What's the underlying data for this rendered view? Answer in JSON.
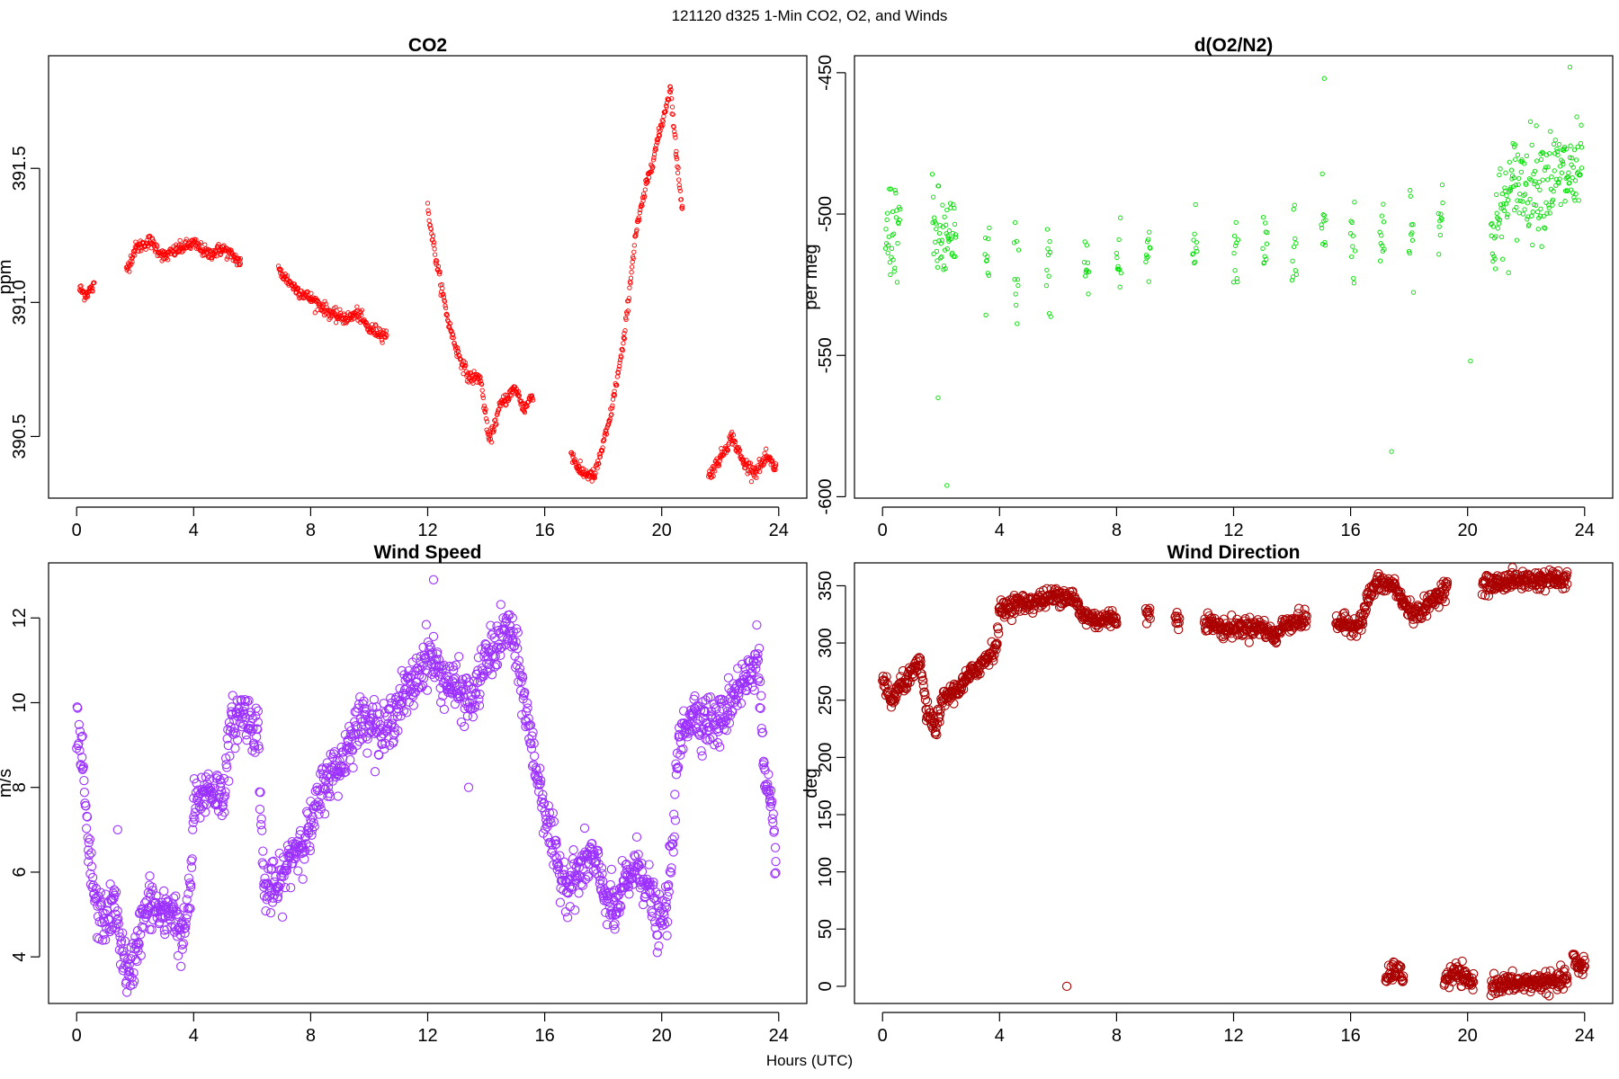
{
  "figure": {
    "title": "121120   d325   1-Min CO2, O2, and Winds",
    "xlabel": "Hours (UTC)"
  },
  "chart_data": [
    {
      "type": "scatter",
      "title": "CO2",
      "xlabel": "",
      "ylabel": "ppm",
      "xlim": [
        -0.96,
        24.96
      ],
      "ylim": [
        390.27,
        391.92
      ],
      "xticks": [
        0,
        4,
        8,
        12,
        16,
        20,
        24
      ],
      "xtick_labels": [
        "0",
        "4",
        "8",
        "12",
        "16",
        "20",
        "24"
      ],
      "yticks": [
        390.5,
        391.0,
        391.5
      ],
      "ytick_labels": [
        "390.5",
        "391.0",
        "391.5"
      ],
      "color": "#ff0000",
      "marker_size": "small",
      "control_points": [
        [
          0.1,
          391.05
        ],
        [
          0.3,
          391.03
        ],
        [
          0.6,
          391.06
        ],
        [
          1.7,
          391.12
        ],
        [
          2.0,
          391.2
        ],
        [
          2.5,
          391.23
        ],
        [
          3.0,
          391.17
        ],
        [
          3.5,
          391.2
        ],
        [
          4.0,
          391.22
        ],
        [
          4.5,
          391.18
        ],
        [
          5.0,
          391.2
        ],
        [
          5.6,
          391.15
        ],
        [
          6.9,
          391.12
        ],
        [
          7.5,
          391.05
        ],
        [
          8.2,
          391.0
        ],
        [
          8.8,
          390.95
        ],
        [
          9.3,
          390.94
        ],
        [
          9.6,
          390.96
        ],
        [
          10.0,
          390.9
        ],
        [
          10.6,
          390.88
        ],
        [
          12.0,
          391.35
        ],
        [
          12.3,
          391.15
        ],
        [
          12.7,
          390.93
        ],
        [
          13.0,
          390.82
        ],
        [
          13.4,
          390.72
        ],
        [
          13.8,
          390.72
        ],
        [
          14.1,
          390.48
        ],
        [
          14.5,
          390.62
        ],
        [
          15.0,
          390.68
        ],
        [
          15.3,
          390.6
        ],
        [
          15.6,
          390.66
        ],
        [
          16.9,
          390.44
        ],
        [
          17.2,
          390.37
        ],
        [
          17.7,
          390.35
        ],
        [
          18.2,
          390.55
        ],
        [
          18.7,
          390.85
        ],
        [
          19.1,
          391.25
        ],
        [
          19.5,
          391.45
        ],
        [
          19.9,
          391.62
        ],
        [
          20.3,
          391.8
        ],
        [
          20.5,
          391.55
        ],
        [
          20.7,
          391.35
        ],
        [
          21.6,
          390.35
        ],
        [
          22.0,
          390.42
        ],
        [
          22.4,
          390.5
        ],
        [
          22.8,
          390.4
        ],
        [
          23.2,
          390.37
        ],
        [
          23.6,
          390.42
        ],
        [
          23.9,
          390.38
        ]
      ],
      "noise": 0.012,
      "outliers": []
    },
    {
      "type": "scatter",
      "title": "d(O2/N2)",
      "xlabel": "",
      "ylabel": "per meg",
      "xlim": [
        -0.96,
        24.96
      ],
      "ylim": [
        -600.5,
        -444
      ],
      "xticks": [
        0,
        4,
        8,
        12,
        16,
        20,
        24
      ],
      "xtick_labels": [
        "0",
        "4",
        "8",
        "12",
        "16",
        "20",
        "24"
      ],
      "yticks": [
        -600,
        -550,
        -500,
        -450
      ],
      "ytick_labels": [
        "-600",
        "-550",
        "-500",
        "-450"
      ],
      "color": "#00dd00",
      "marker_size": "small",
      "control_points": [
        [
          0.1,
          -508
        ],
        [
          0.6,
          -503
        ],
        [
          1.7,
          -507
        ],
        [
          2.5,
          -512
        ],
        [
          3.5,
          -517
        ],
        [
          4.5,
          -520
        ],
        [
          5.6,
          -520
        ],
        [
          6.9,
          -520
        ],
        [
          8.0,
          -517
        ],
        [
          9.0,
          -514
        ],
        [
          10.6,
          -512
        ],
        [
          12.0,
          -515
        ],
        [
          13.0,
          -510
        ],
        [
          14.0,
          -508
        ],
        [
          15.0,
          -505
        ],
        [
          16.0,
          -510
        ],
        [
          17.0,
          -505
        ],
        [
          18.0,
          -502
        ],
        [
          19.0,
          -503
        ],
        [
          20.8,
          -508
        ],
        [
          21.6,
          -490
        ],
        [
          22.5,
          -488
        ],
        [
          23.4,
          -486
        ],
        [
          23.9,
          -487
        ]
      ],
      "noise": 9,
      "outliers": [
        [
          1.9,
          -565
        ],
        [
          2.2,
          -596
        ],
        [
          17.4,
          -584
        ],
        [
          15.1,
          -452
        ],
        [
          23.5,
          -448
        ],
        [
          20.1,
          -552
        ]
      ]
    },
    {
      "type": "scatter",
      "title": "Wind Speed",
      "xlabel": "",
      "ylabel": "m/s",
      "xlim": [
        -0.96,
        24.96
      ],
      "ylim": [
        2.9,
        13.3
      ],
      "xticks": [
        0,
        4,
        8,
        12,
        16,
        20,
        24
      ],
      "xtick_labels": [
        "0",
        "4",
        "8",
        "12",
        "16",
        "20",
        "24"
      ],
      "yticks": [
        4,
        6,
        8,
        10,
        12
      ],
      "ytick_labels": [
        "4",
        "6",
        "8",
        "10",
        "12"
      ],
      "color": "#9b30ff",
      "marker_size": "large",
      "control_points": [
        [
          0.0,
          9.5
        ],
        [
          0.2,
          8.5
        ],
        [
          0.4,
          6.5
        ],
        [
          0.7,
          5.0
        ],
        [
          1.0,
          4.9
        ],
        [
          1.3,
          5.2
        ],
        [
          1.6,
          4.0
        ],
        [
          1.8,
          3.4
        ],
        [
          2.1,
          4.5
        ],
        [
          2.5,
          5.3
        ],
        [
          3.0,
          4.9
        ],
        [
          3.3,
          5.2
        ],
        [
          3.6,
          4.3
        ],
        [
          3.9,
          5.6
        ],
        [
          4.0,
          7.5
        ],
        [
          4.5,
          8.0
        ],
        [
          5.0,
          7.8
        ],
        [
          5.3,
          9.5
        ],
        [
          5.7,
          9.8
        ],
        [
          6.2,
          9.3
        ],
        [
          6.4,
          5.6
        ],
        [
          6.9,
          5.6
        ],
        [
          7.4,
          6.5
        ],
        [
          8.0,
          7.0
        ],
        [
          8.5,
          8.2
        ],
        [
          9.0,
          8.5
        ],
        [
          9.5,
          9.4
        ],
        [
          10.0,
          9.7
        ],
        [
          10.5,
          9.2
        ],
        [
          11.0,
          10.0
        ],
        [
          11.5,
          10.4
        ],
        [
          12.0,
          11.2
        ],
        [
          12.5,
          10.6
        ],
        [
          13.0,
          10.3
        ],
        [
          13.5,
          10.0
        ],
        [
          14.0,
          11.0
        ],
        [
          14.5,
          11.5
        ],
        [
          14.8,
          11.8
        ],
        [
          15.2,
          10.5
        ],
        [
          15.6,
          8.8
        ],
        [
          16.0,
          7.5
        ],
        [
          16.4,
          6.2
        ],
        [
          16.8,
          5.7
        ],
        [
          17.2,
          6.0
        ],
        [
          17.6,
          6.4
        ],
        [
          18.0,
          5.6
        ],
        [
          18.4,
          5.0
        ],
        [
          18.8,
          5.8
        ],
        [
          19.2,
          6.2
        ],
        [
          19.6,
          5.5
        ],
        [
          19.9,
          4.7
        ],
        [
          20.2,
          5.2
        ],
        [
          20.6,
          9.0
        ],
        [
          21.0,
          9.8
        ],
        [
          21.5,
          9.6
        ],
        [
          22.0,
          9.5
        ],
        [
          22.5,
          10.3
        ],
        [
          23.0,
          10.6
        ],
        [
          23.3,
          11.3
        ],
        [
          23.5,
          8.2
        ],
        [
          23.7,
          7.5
        ],
        [
          23.9,
          6.5
        ]
      ],
      "noise": 0.3,
      "outliers": [
        [
          12.2,
          12.9
        ],
        [
          13.4,
          8.0
        ],
        [
          1.4,
          7.0
        ]
      ]
    },
    {
      "type": "scatter",
      "title": "Wind Direction",
      "xlabel": "",
      "ylabel": "deg",
      "xlim": [
        -0.96,
        24.96
      ],
      "ylim": [
        -15,
        370
      ],
      "xticks": [
        0,
        4,
        8,
        12,
        16,
        20,
        24
      ],
      "xtick_labels": [
        "0",
        "4",
        "8",
        "12",
        "16",
        "20",
        "24"
      ],
      "yticks": [
        0,
        50,
        100,
        150,
        200,
        250,
        300,
        350
      ],
      "ytick_labels": [
        "0",
        "50",
        "100",
        "150",
        "200",
        "250",
        "300",
        "350"
      ],
      "color": "#aa0000",
      "marker_size": "large",
      "control_points": [
        [
          0.0,
          268
        ],
        [
          0.3,
          248
        ],
        [
          0.6,
          262
        ],
        [
          1.0,
          272
        ],
        [
          1.3,
          282
        ],
        [
          1.5,
          240
        ],
        [
          1.8,
          225
        ],
        [
          2.1,
          252
        ],
        [
          2.6,
          260
        ],
        [
          3.0,
          272
        ],
        [
          3.5,
          285
        ],
        [
          3.9,
          298
        ],
        [
          4.0,
          328
        ],
        [
          4.5,
          334
        ],
        [
          5.0,
          335
        ],
        [
          5.5,
          338
        ],
        [
          6.0,
          342
        ],
        [
          6.5,
          340
        ],
        [
          6.8,
          325
        ],
        [
          7.3,
          320
        ],
        [
          8.0,
          322
        ],
        [
          9.0,
          325
        ],
        [
          10.0,
          322
        ],
        [
          11.0,
          320
        ],
        [
          11.6,
          312
        ],
        [
          12.3,
          314
        ],
        [
          13.0,
          314
        ],
        [
          13.4,
          305
        ],
        [
          13.8,
          318
        ],
        [
          14.5,
          320
        ],
        [
          15.5,
          318
        ],
        [
          16.1,
          315
        ],
        [
          16.4,
          320
        ],
        [
          16.6,
          340
        ],
        [
          16.9,
          352
        ],
        [
          17.5,
          350
        ],
        [
          17.8,
          335
        ],
        [
          18.2,
          325
        ],
        [
          18.6,
          332
        ],
        [
          19.0,
          342
        ],
        [
          19.3,
          350
        ],
        [
          20.5,
          350
        ],
        [
          21.0,
          352
        ],
        [
          21.5,
          355
        ],
        [
          22.0,
          355
        ],
        [
          22.5,
          355
        ],
        [
          23.0,
          356
        ],
        [
          23.4,
          354
        ]
      ],
      "noise": 4,
      "extra_segments": [
        [
          [
            17.2,
            5
          ],
          [
            17.5,
            15
          ],
          [
            17.8,
            8
          ]
        ],
        [
          [
            19.2,
            5
          ],
          [
            19.6,
            12
          ],
          [
            19.9,
            6
          ],
          [
            20.2,
            3
          ]
        ],
        [
          [
            20.8,
            2
          ],
          [
            21.4,
            2
          ],
          [
            22.0,
            3
          ],
          [
            22.6,
            4
          ],
          [
            23.0,
            3
          ],
          [
            23.4,
            8
          ]
        ],
        [
          [
            23.6,
            25
          ],
          [
            23.8,
            15
          ],
          [
            24.0,
            20
          ]
        ]
      ],
      "outliers": [
        [
          6.3,
          0
        ]
      ]
    }
  ]
}
